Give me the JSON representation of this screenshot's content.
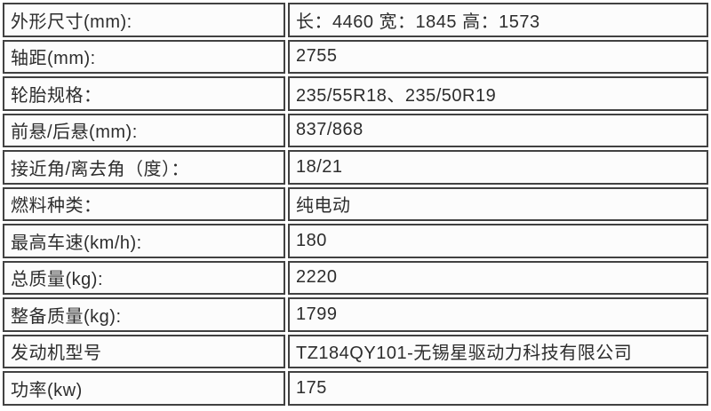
{
  "table": {
    "name": "vehicle-specifications",
    "rows": [
      {
        "label": "外形尺寸(mm):",
        "value": "长：4460 宽：1845 高：1573"
      },
      {
        "label": "轴距(mm):",
        "value": "2755"
      },
      {
        "label": "轮胎规格：",
        "value": "235/55R18、235/50R19"
      },
      {
        "label": "前悬/后悬(mm):",
        "value": "837/868"
      },
      {
        "label": "接近角/离去角（度）：",
        "value": "18/21"
      },
      {
        "label": "燃料种类：",
        "value": "纯电动"
      },
      {
        "label": "最高车速(km/h):",
        "value": "180"
      },
      {
        "label": "总质量(kg):",
        "value": "2220"
      },
      {
        "label": "整备质量(kg):",
        "value": "1799"
      },
      {
        "label": "发动机型号",
        "value": "TZ184QY101-无锡星驱动力科技有限公司"
      },
      {
        "label": "功率(kw)",
        "value": "175"
      }
    ],
    "colors": {
      "border": "#414141",
      "cell_background": "#fcfcfc",
      "text": "#2d2d2d",
      "page_background": "#ffffff"
    }
  }
}
